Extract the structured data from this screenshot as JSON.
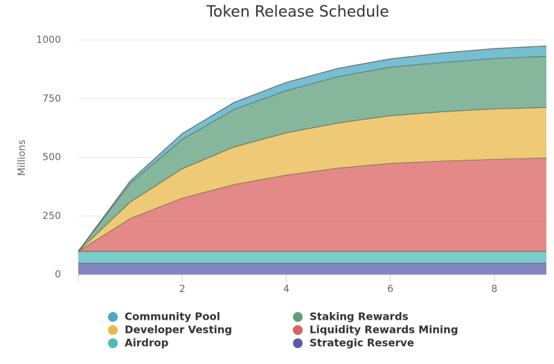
{
  "chart_data": {
    "type": "stacked-area",
    "title": "Token Release Schedule",
    "y_label": "Millions",
    "x": [
      0,
      1,
      2,
      3,
      4,
      5,
      6,
      7,
      8,
      9
    ],
    "xlim": [
      0,
      9
    ],
    "xticks": [
      2,
      4,
      6,
      8
    ],
    "ylim": [
      0,
      1000
    ],
    "yticks": [
      0,
      250,
      500,
      750,
      1000
    ],
    "grid": true,
    "series": [
      {
        "name": "Strategic Reserve",
        "color": "#5b5bab",
        "values": [
          50,
          50,
          50,
          50,
          50,
          50,
          50,
          50,
          50,
          50
        ]
      },
      {
        "name": "Airdrop",
        "color": "#4cbcb6",
        "values": [
          50,
          50,
          50,
          50,
          50,
          50,
          50,
          50,
          50,
          50
        ]
      },
      {
        "name": "Liquidity Rewards Mining",
        "color": "#d9625f",
        "values": [
          0,
          140,
          227,
          285,
          325,
          355,
          375,
          385,
          392,
          398
        ]
      },
      {
        "name": "Developer Vesting",
        "color": "#e8b84a",
        "values": [
          0,
          70,
          125,
          160,
          180,
          192,
          203,
          210,
          215,
          215
        ]
      },
      {
        "name": "Staking Rewards",
        "color": "#5e9e7a",
        "values": [
          0,
          80,
          125,
          160,
          180,
          198,
          207,
          210,
          215,
          218
        ]
      },
      {
        "name": "Community Pool",
        "color": "#4aa8c0",
        "values": [
          0,
          10,
          25,
          30,
          35,
          35,
          35,
          40,
          42,
          44
        ]
      }
    ]
  }
}
